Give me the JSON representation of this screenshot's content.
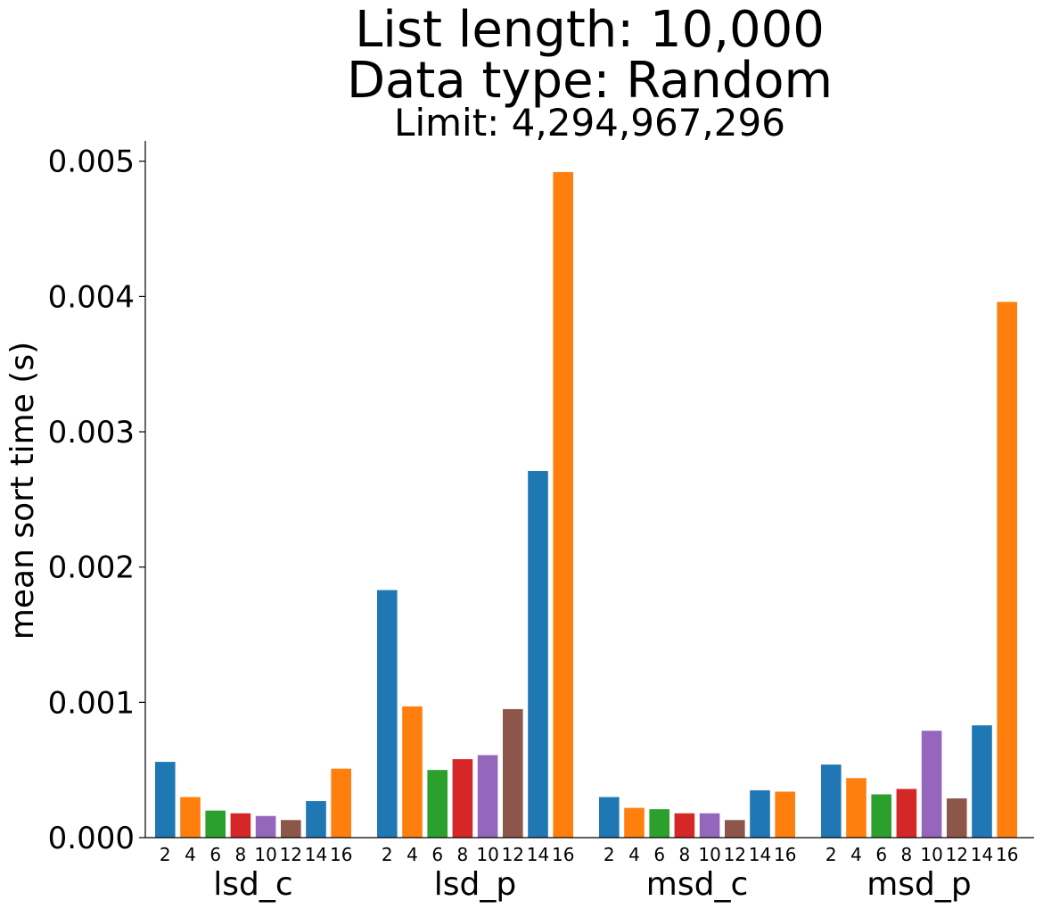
{
  "chart_data": {
    "type": "bar",
    "title": "List length: 10,000",
    "subtitle": "Data type: Random",
    "subtitle2": "Limit: 4,294,967,296",
    "xlabel": "",
    "ylabel": "mean sort time (s)",
    "ylim": [
      0,
      0.00515
    ],
    "yticks": [
      "0.000",
      "0.001",
      "0.002",
      "0.003",
      "0.004",
      "0.005"
    ],
    "ytick_values": [
      0,
      0.001,
      0.002,
      0.003,
      0.004,
      0.005
    ],
    "sub_categories": [
      "2",
      "4",
      "6",
      "8",
      "10",
      "12",
      "14",
      "16"
    ],
    "bar_colors": [
      "#1f77b4",
      "#ff7f0e",
      "#2ca02c",
      "#d62728",
      "#9467bd",
      "#8c564b",
      "#1f77b4",
      "#ff7f0e"
    ],
    "groups": [
      {
        "name": "lsd_c",
        "values": [
          0.00056,
          0.0003,
          0.0002,
          0.00018,
          0.00016,
          0.00013,
          0.00027,
          0.00051
        ]
      },
      {
        "name": "lsd_p",
        "values": [
          0.00183,
          0.00097,
          0.0005,
          0.00058,
          0.00061,
          0.00095,
          0.00271,
          0.00492
        ]
      },
      {
        "name": "msd_c",
        "values": [
          0.0003,
          0.00022,
          0.00021,
          0.00018,
          0.00018,
          0.00013,
          0.00035,
          0.00034
        ]
      },
      {
        "name": "msd_p",
        "values": [
          0.00054,
          0.00044,
          0.00032,
          0.00036,
          0.00079,
          0.00029,
          0.00083,
          0.00396
        ]
      }
    ],
    "grid": false,
    "legend": "none"
  }
}
